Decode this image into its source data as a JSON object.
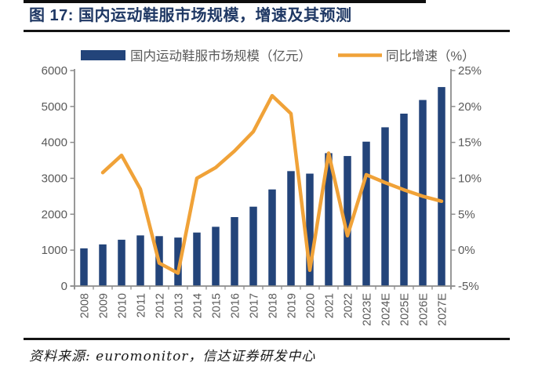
{
  "header": {
    "title": "图 17: 国内运动鞋服市场规模，增速及其预测"
  },
  "legend": {
    "bar_label": "国内运动鞋服市场规模（亿元）",
    "line_label": "同比增速（%）"
  },
  "footer": {
    "source": "资料来源: euromonitor，信达证券研发中心"
  },
  "colors": {
    "bar": "#23447A",
    "line": "#F0A238",
    "title_text": "#1F3864",
    "axis_text": "#595959",
    "axis_line": "#8C8C8C",
    "legend_text": "#262626",
    "rule": "#141414"
  },
  "chart_data": {
    "type": "bar+line",
    "categories": [
      "2008",
      "2009",
      "2010",
      "2011",
      "2012",
      "2013",
      "2014",
      "2015",
      "2016",
      "2017",
      "2018",
      "2019",
      "2020",
      "2021",
      "2022",
      "2023E",
      "2024E",
      "2025E",
      "2026E",
      "2027E"
    ],
    "series": [
      {
        "name": "国内运动鞋服市场规模（亿元）",
        "type": "bar",
        "axis": "left",
        "values": [
          1050,
          1160,
          1290,
          1410,
          1390,
          1350,
          1490,
          1650,
          1920,
          2210,
          2690,
          3200,
          3130,
          3700,
          3620,
          4020,
          4420,
          4800,
          5180,
          5540
        ]
      },
      {
        "name": "同比增速（%）",
        "type": "line",
        "axis": "right",
        "values": [
          null,
          10.8,
          13.2,
          8.5,
          -1.8,
          -3.2,
          10,
          11.5,
          13.8,
          16.5,
          21.5,
          19,
          -2.8,
          13.5,
          2,
          10.5,
          9.4,
          8.4,
          7.5,
          6.8
        ]
      }
    ],
    "left_axis": {
      "min": 0,
      "max": 6000,
      "step": 1000,
      "ticks": [
        "0",
        "1000",
        "2000",
        "3000",
        "4000",
        "5000",
        "6000"
      ]
    },
    "right_axis": {
      "min": -5,
      "max": 25,
      "step": 5,
      "ticks": [
        "-5%",
        "0%",
        "5%",
        "10%",
        "15%",
        "20%",
        "25%"
      ]
    },
    "legend_position": "top",
    "grid": false
  }
}
